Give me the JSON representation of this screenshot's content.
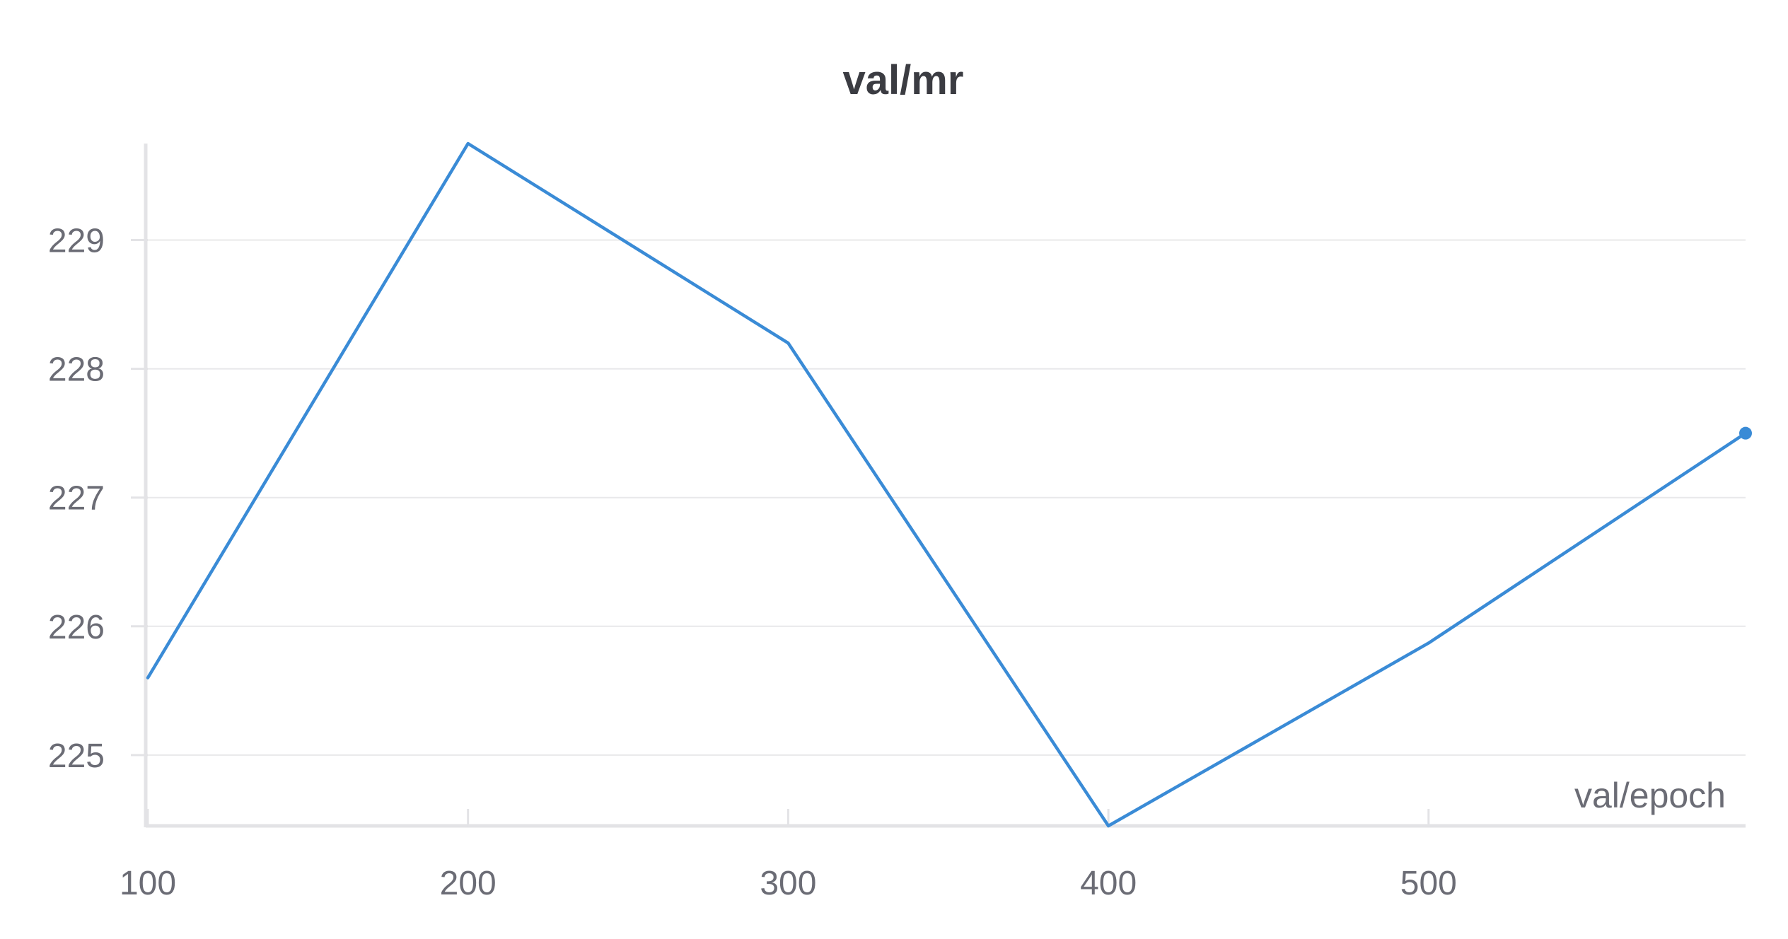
{
  "chart_data": {
    "type": "line",
    "title": "val/mr",
    "xlabel": "val/epoch",
    "ylabel": "",
    "xlim": [
      100,
      599
    ],
    "ylim": [
      224.45,
      229.75
    ],
    "x_ticks": [
      100,
      200,
      300,
      400,
      500
    ],
    "y_ticks": [
      225,
      226,
      227,
      228,
      229
    ],
    "grid": true,
    "legend": "none",
    "series": [
      {
        "color": "#3a8bd6",
        "x": [
          100,
          200,
          300,
          400,
          500,
          599
        ],
        "values": [
          225.6,
          229.75,
          228.2,
          224.45,
          225.87,
          227.5
        ]
      }
    ]
  }
}
